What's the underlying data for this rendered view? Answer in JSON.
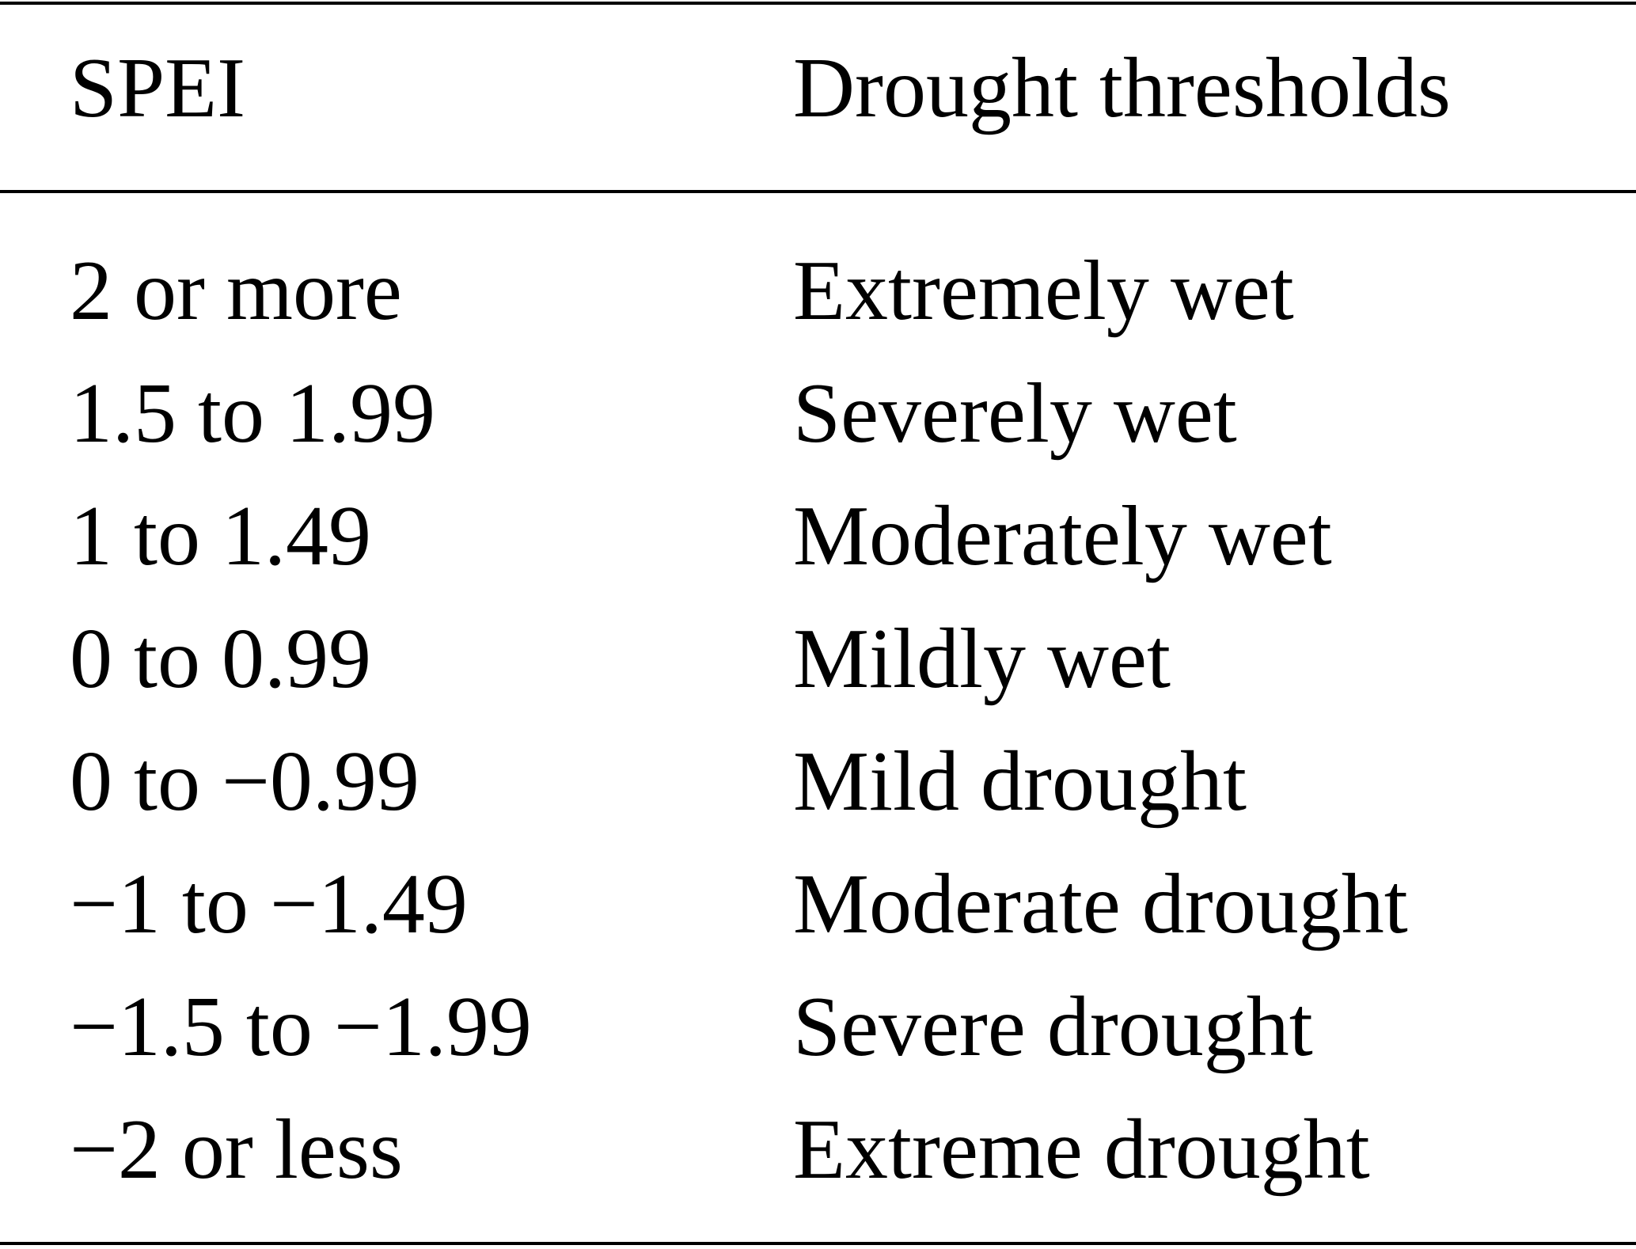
{
  "table": {
    "headers": [
      "SPEI",
      "Drought thresholds"
    ],
    "rows": [
      [
        "2 or more",
        "Extremely wet"
      ],
      [
        "1.5 to 1.99",
        "Severely wet"
      ],
      [
        "1 to 1.49",
        "Moderately wet"
      ],
      [
        "0 to 0.99",
        "Mildly wet"
      ],
      [
        "0 to −0.99",
        "Mild drought"
      ],
      [
        "−1 to −1.49",
        "Moderate drought"
      ],
      [
        "−1.5 to −1.99",
        "Severe drought"
      ],
      [
        "−2 or less",
        "Extreme drought"
      ]
    ]
  }
}
